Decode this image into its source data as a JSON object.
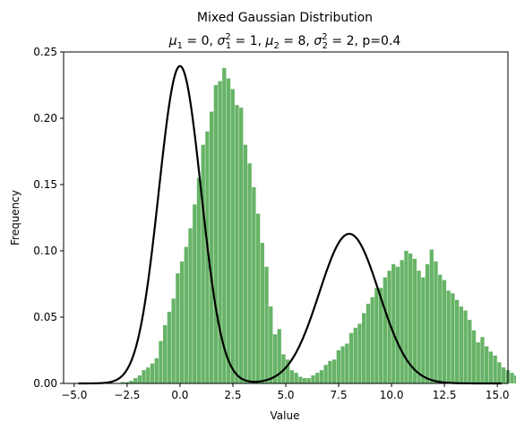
{
  "chart_data": {
    "type": "bar",
    "title": "Mixed Gaussian Distribution",
    "subtitle": {
      "mu1": "0",
      "sigma1_sq": "1",
      "mu2": "8",
      "sigma2_sq": "2",
      "p": "0.4"
    },
    "xlabel": "Value",
    "ylabel": "Frequency",
    "xlim": [
      -5.5,
      15.5
    ],
    "ylim": [
      0,
      0.25
    ],
    "x_ticks": [
      -5.0,
      -2.5,
      0.0,
      2.5,
      5.0,
      7.5,
      10.0,
      12.5,
      15.0
    ],
    "x_tick_labels": [
      "−5.0",
      "−2.5",
      "0.0",
      "2.5",
      "5.0",
      "7.5",
      "10.0",
      "12.5",
      "15.0"
    ],
    "y_ticks": [
      0.0,
      0.05,
      0.1,
      0.15,
      0.2,
      0.25
    ],
    "y_tick_labels": [
      "0.00",
      "0.05",
      "0.10",
      "0.15",
      "0.20",
      "0.25"
    ],
    "grid": false,
    "series": [
      {
        "kind": "histogram",
        "color": "#4ca64c",
        "bin_start": -5.0,
        "bin_width": 0.2,
        "values": [
          0.0,
          0.0,
          0.0,
          0.0,
          0.0,
          0.0,
          0.0,
          0.0,
          0.0,
          0.0,
          0.0,
          0.001,
          0.001,
          0.002,
          0.004,
          0.006,
          0.01,
          0.012,
          0.015,
          0.019,
          0.032,
          0.044,
          0.054,
          0.064,
          0.083,
          0.092,
          0.103,
          0.117,
          0.135,
          0.155,
          0.18,
          0.19,
          0.205,
          0.225,
          0.228,
          0.238,
          0.23,
          0.222,
          0.21,
          0.208,
          0.18,
          0.166,
          0.148,
          0.128,
          0.106,
          0.088,
          0.058,
          0.037,
          0.041,
          0.022,
          0.018,
          0.01,
          0.008,
          0.005,
          0.004,
          0.004,
          0.006,
          0.008,
          0.01,
          0.014,
          0.017,
          0.018,
          0.025,
          0.028,
          0.03,
          0.038,
          0.042,
          0.045,
          0.053,
          0.06,
          0.065,
          0.072,
          0.072,
          0.08,
          0.085,
          0.09,
          0.088,
          0.093,
          0.1,
          0.098,
          0.094,
          0.085,
          0.08,
          0.09,
          0.101,
          0.092,
          0.082,
          0.078,
          0.07,
          0.068,
          0.063,
          0.058,
          0.055,
          0.048,
          0.04,
          0.031,
          0.035,
          0.028,
          0.024,
          0.021,
          0.016,
          0.012,
          0.01,
          0.008,
          0.006,
          0.004,
          0.003,
          0.002,
          0.001,
          0.001,
          0.0,
          0.0,
          0.0,
          0.0,
          0.0,
          0.0,
          0.0,
          0.0,
          0.0,
          0.0,
          0.0,
          0.0,
          0.0,
          0.0,
          0.0,
          0.0,
          0.0,
          0.0,
          0.0,
          0.0,
          0.0,
          0.0,
          0.0,
          0.0,
          0.0,
          0.0,
          0.0,
          0.0,
          0.0,
          0.0,
          0.0,
          0.0,
          0.0,
          0.0,
          0.0,
          0.0,
          0.0,
          0.0,
          0.0,
          0.0,
          0.0,
          0.0
        ]
      },
      {
        "kind": "density",
        "color": "#000000",
        "p": 0.4,
        "components": [
          {
            "mean": 0,
            "variance": 1
          },
          {
            "mean": 8,
            "variance": 2
          }
        ],
        "x_range": [
          -4.8,
          15.2
        ]
      }
    ]
  }
}
